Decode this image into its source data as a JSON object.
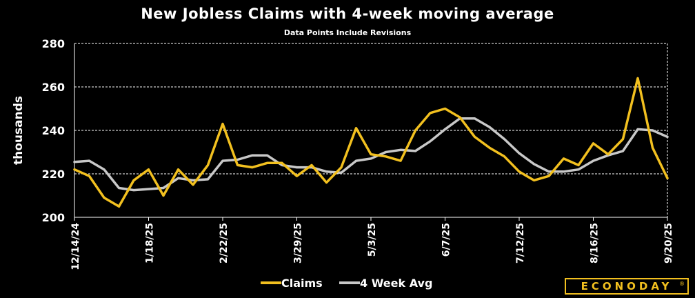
{
  "chart_data": {
    "type": "line",
    "title": "New Jobless Claims with 4-week moving average",
    "subtitle": "Data Points Include Revisions",
    "ylabel": "thousands",
    "xlabel": "",
    "ylim": [
      200,
      280
    ],
    "yticks": [
      200,
      220,
      240,
      260,
      280
    ],
    "grid": true,
    "legend_position": "bottom",
    "xticks": [
      {
        "index": 0,
        "label": "12/14/24"
      },
      {
        "index": 5,
        "label": "1/18/25"
      },
      {
        "index": 10,
        "label": "2/22/25"
      },
      {
        "index": 15,
        "label": "3/29/25"
      },
      {
        "index": 20,
        "label": "5/3/25"
      },
      {
        "index": 25,
        "label": "6/7/25"
      },
      {
        "index": 30,
        "label": "7/12/25"
      },
      {
        "index": 35,
        "label": "8/16/25"
      },
      {
        "index": 40,
        "label": "9/20/25"
      }
    ],
    "series": [
      {
        "name": "Claims",
        "color": "#f2c01f",
        "values": [
          222,
          219,
          209,
          205,
          217,
          222,
          210,
          222,
          215,
          224,
          243,
          224,
          223,
          225,
          225,
          219,
          224,
          216,
          223,
          241,
          229,
          228,
          226,
          240,
          248,
          250,
          246,
          237,
          232,
          228,
          221,
          217,
          219,
          227,
          224,
          234,
          229,
          236,
          264,
          232,
          218
        ]
      },
      {
        "name": "4 Week Avg",
        "color": "#c8c8c8",
        "values": [
          225.5,
          226,
          222,
          213.5,
          212.5,
          213,
          213.5,
          218,
          217,
          217.5,
          226,
          226.5,
          228.5,
          228.5,
          224,
          223,
          223,
          221,
          220.5,
          226,
          227,
          230,
          231,
          230.5,
          235,
          240.5,
          245.5,
          245.5,
          241.5,
          236,
          229.5,
          224.5,
          221,
          221,
          222,
          226,
          228.5,
          230.5,
          240.5,
          240,
          237
        ]
      }
    ]
  },
  "brand": {
    "name": "ECONODAY",
    "mark": "®",
    "color": "#f2c01f"
  }
}
